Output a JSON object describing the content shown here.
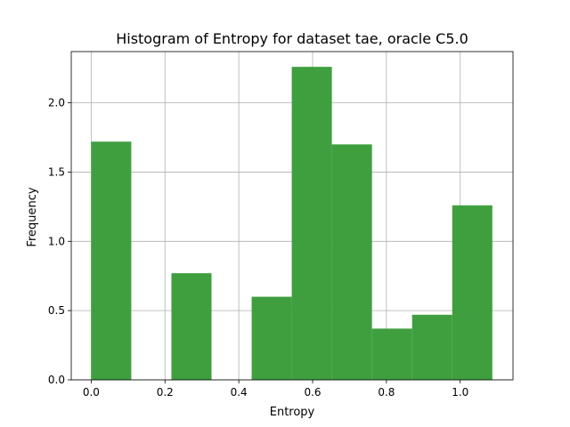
{
  "chart_data": {
    "type": "bar",
    "title": "Histogram of Entropy for dataset tae, oracle C5.0",
    "xlabel": "Entropy",
    "ylabel": "Frequency",
    "xlim": [
      -0.054,
      1.143
    ],
    "ylim": [
      0,
      2.37
    ],
    "grid": true,
    "bar_color": "#3f9f3f",
    "bin_width": 0.1087,
    "bins": [
      {
        "x0": 0.0,
        "x1": 0.1087,
        "value": 1.72
      },
      {
        "x0": 0.1087,
        "x1": 0.2174,
        "value": 0.0
      },
      {
        "x0": 0.2174,
        "x1": 0.3261,
        "value": 0.77
      },
      {
        "x0": 0.3261,
        "x1": 0.4348,
        "value": 0.0
      },
      {
        "x0": 0.4348,
        "x1": 0.5435,
        "value": 0.6
      },
      {
        "x0": 0.5435,
        "x1": 0.6522,
        "value": 2.26
      },
      {
        "x0": 0.6522,
        "x1": 0.7609,
        "value": 1.7
      },
      {
        "x0": 0.7609,
        "x1": 0.8696,
        "value": 0.37
      },
      {
        "x0": 0.8696,
        "x1": 0.9783,
        "value": 0.47
      },
      {
        "x0": 0.9783,
        "x1": 1.087,
        "value": 1.26
      }
    ],
    "xticks": [
      0.0,
      0.2,
      0.4,
      0.6,
      0.8,
      1.0
    ],
    "xtick_labels": [
      "0.0",
      "0.2",
      "0.4",
      "0.6",
      "0.8",
      "1.0"
    ],
    "yticks": [
      0.0,
      0.5,
      1.0,
      1.5,
      2.0
    ],
    "ytick_labels": [
      "0.0",
      "0.5",
      "1.0",
      "1.5",
      "2.0"
    ]
  }
}
